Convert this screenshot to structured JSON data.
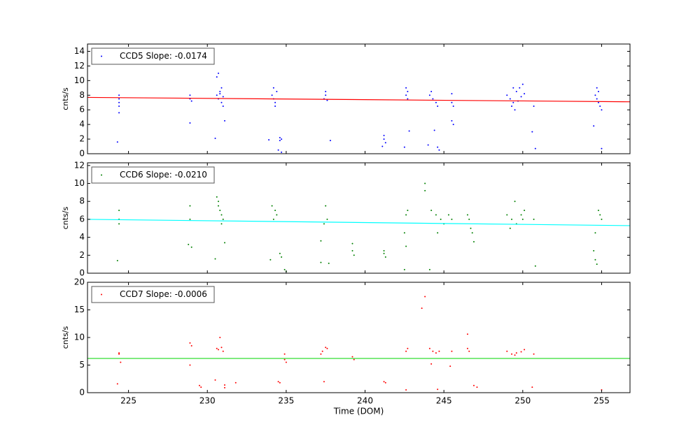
{
  "chart_data": [
    {
      "type": "scatter",
      "ylabel": "cnts/s",
      "xlim": [
        222.4,
        256.8
      ],
      "xticks": [
        225,
        230,
        235,
        240,
        245,
        250,
        255
      ],
      "xtick_labels": false,
      "ylim": [
        0,
        15
      ],
      "yticks": [
        0,
        2,
        4,
        6,
        8,
        10,
        12,
        14
      ],
      "legend": "upper left",
      "series": [
        {
          "name": "CCD5 Slope: -0.0174",
          "color": "#0000ff",
          "x": [
            224.4,
            224.4,
            224.4,
            224.4,
            224.4,
            224.3,
            228.9,
            228.9,
            229.0,
            228.9,
            230.6,
            230.7,
            230.8,
            230.9,
            230.6,
            230.7,
            230.9,
            231.0,
            230.8,
            231.0,
            231.1,
            230.5,
            234.1,
            234.2,
            234.3,
            234.4,
            234.2,
            234.3,
            233.9,
            234.6,
            234.7,
            234.6,
            234.5,
            234.7,
            237.4,
            237.5,
            237.6,
            237.5,
            237.8,
            241.2,
            241.2,
            241.3,
            241.1,
            242.6,
            242.7,
            242.6,
            242.7,
            242.5,
            242.8,
            244.1,
            244.3,
            244.5,
            244.6,
            244.2,
            244.0,
            244.4,
            244.6,
            244.7,
            245.5,
            245.5,
            245.6,
            245.5,
            245.6,
            249.0,
            249.2,
            249.4,
            249.6,
            249.8,
            250.0,
            249.3,
            249.5,
            249.7,
            249.9,
            250.1,
            249.4,
            250.7,
            250.6,
            250.8,
            254.6,
            254.7,
            254.8,
            254.9,
            255.0,
            254.8,
            254.7,
            254.5,
            255.0
          ],
          "values": [
            7.5,
            8,
            7,
            6.5,
            5.6,
            1.6,
            8,
            7.5,
            7.2,
            4.2,
            8,
            7.5,
            8.5,
            9,
            10.5,
            11,
            7,
            7.8,
            8.2,
            6.5,
            4.5,
            2.1,
            8,
            7.5,
            7,
            8.5,
            9,
            6.5,
            1.9,
            2.2,
            2.0,
            1.8,
            0.5,
            0.2,
            7.5,
            8,
            7.3,
            8.5,
            1.8,
            2.5,
            2,
            1.5,
            1.0,
            8,
            7.5,
            9,
            8.5,
            0.9,
            3.1,
            8,
            7.5,
            7,
            6.5,
            8.5,
            1.2,
            3.2,
            0.9,
            0.5,
            8.2,
            7,
            6.5,
            4.5,
            4,
            8,
            7.5,
            7,
            8.5,
            9,
            9.5,
            6.5,
            6,
            7.2,
            7.8,
            8.2,
            9,
            6.5,
            3,
            0.7,
            8,
            7.5,
            7,
            6.5,
            6,
            8.5,
            9,
            3.8,
            0.7
          ]
        }
      ],
      "fit": {
        "color": "#ff0000",
        "x": [
          222.4,
          256.8
        ],
        "values": [
          7.7,
          7.1
        ]
      }
    },
    {
      "type": "scatter",
      "ylabel": "cnts/s",
      "xlim": [
        222.4,
        256.8
      ],
      "xticks": [
        225,
        230,
        235,
        240,
        245,
        250,
        255
      ],
      "xtick_labels": false,
      "ylim": [
        0,
        12.3
      ],
      "yticks": [
        0,
        2,
        4,
        6,
        8,
        10,
        12
      ],
      "legend": "upper left",
      "series": [
        {
          "name": "CCD6 Slope: -0.0210",
          "color": "#008000",
          "x": [
            224.4,
            224.4,
            224.4,
            224.3,
            228.9,
            228.9,
            228.8,
            229.0,
            230.6,
            230.7,
            230.8,
            230.9,
            231.0,
            230.7,
            230.9,
            230.5,
            231.1,
            234.1,
            234.3,
            234.4,
            234.2,
            234.0,
            234.6,
            234.7,
            234.9,
            235.0,
            237.2,
            237.2,
            237.5,
            237.6,
            237.4,
            237.7,
            239.2,
            239.2,
            239.3,
            241.2,
            241.2,
            241.3,
            242.5,
            242.6,
            242.7,
            242.6,
            242.5,
            243.8,
            243.8,
            244.2,
            244.5,
            244.8,
            245.0,
            245.3,
            245.5,
            244.6,
            244.1,
            246.5,
            246.6,
            246.7,
            246.8,
            246.9,
            249.0,
            249.3,
            249.6,
            249.9,
            250.1,
            249.5,
            249.2,
            250.0,
            250.7,
            250.8,
            254.5,
            254.6,
            254.7,
            254.8,
            254.9,
            255.0,
            254.6
          ],
          "values": [
            7,
            6,
            5.5,
            1.4,
            7.5,
            6,
            3.2,
            2.9,
            8.5,
            7.5,
            7,
            6.5,
            6,
            8,
            5.5,
            1.6,
            3.4,
            7.5,
            7,
            6.5,
            6,
            1.5,
            2.2,
            1.8,
            0.4,
            0.2,
            3.6,
            1.2,
            7.5,
            6,
            5.5,
            1.1,
            3.3,
            2.5,
            2.0,
            2.5,
            2.2,
            1.8,
            4.5,
            3,
            7,
            6.5,
            0.4,
            10,
            9.2,
            7,
            6.5,
            6,
            5.5,
            6.5,
            6,
            4.5,
            0.4,
            6.5,
            6,
            5,
            4.5,
            3.5,
            6.5,
            6,
            5.5,
            6.5,
            7,
            8,
            5,
            6,
            6,
            0.8,
            2.5,
            1.5,
            1,
            7,
            6.5,
            6,
            4.5
          ]
        }
      ],
      "fit": {
        "color": "#00ffff",
        "x": [
          222.4,
          256.8
        ],
        "values": [
          6.0,
          5.3
        ]
      }
    },
    {
      "type": "scatter",
      "ylabel": "cnts/s",
      "xlabel": "Time (DOM)",
      "xlim": [
        222.4,
        256.8
      ],
      "xticks": [
        225,
        230,
        235,
        240,
        245,
        250,
        255
      ],
      "xtick_labels": true,
      "ylim": [
        0,
        20
      ],
      "yticks": [
        0,
        5,
        10,
        15,
        20
      ],
      "legend": "upper left",
      "series": [
        {
          "name": "CCD7 Slope: -0.0006",
          "color": "#ff0000",
          "x": [
            224.4,
            224.4,
            224.5,
            224.3,
            228.9,
            229.0,
            228.9,
            229.5,
            229.6,
            230.6,
            230.8,
            231.0,
            230.7,
            230.5,
            230.9,
            231.1,
            231.1,
            231.8,
            234.5,
            234.6,
            234.9,
            234.9,
            235.0,
            237.3,
            237.5,
            237.6,
            237.2,
            237.4,
            239.2,
            239.3,
            241.2,
            241.3,
            242.6,
            242.7,
            242.6,
            243.6,
            243.8,
            244.1,
            244.3,
            244.5,
            244.7,
            244.6,
            244.2,
            245.5,
            245.4,
            246.5,
            246.6,
            246.5,
            246.9,
            247.1,
            249.0,
            249.3,
            249.6,
            249.9,
            250.1,
            249.5,
            250.7,
            250.6,
            255.0
          ],
          "values": [
            7.2,
            7,
            5.5,
            1.6,
            9,
            8.5,
            5,
            1.3,
            1,
            8,
            10,
            7.5,
            7.8,
            2.3,
            8.2,
            1.4,
            0.9,
            1.8,
            2,
            1.8,
            7,
            6,
            5.5,
            7.5,
            8.2,
            8,
            7,
            2,
            6.5,
            6,
            2,
            1.8,
            7.5,
            8,
            0.5,
            15.3,
            17.4,
            8,
            7.5,
            7.2,
            7.5,
            0.6,
            5.2,
            7.5,
            4.8,
            8,
            7.5,
            10.6,
            1.3,
            1,
            7.5,
            7,
            7.2,
            7.4,
            7.8,
            6.8,
            7,
            1,
            0.5
          ]
        }
      ],
      "fit": {
        "color": "#33dd33",
        "x": [
          222.4,
          256.8
        ],
        "values": [
          6.2,
          6.2
        ]
      }
    }
  ]
}
